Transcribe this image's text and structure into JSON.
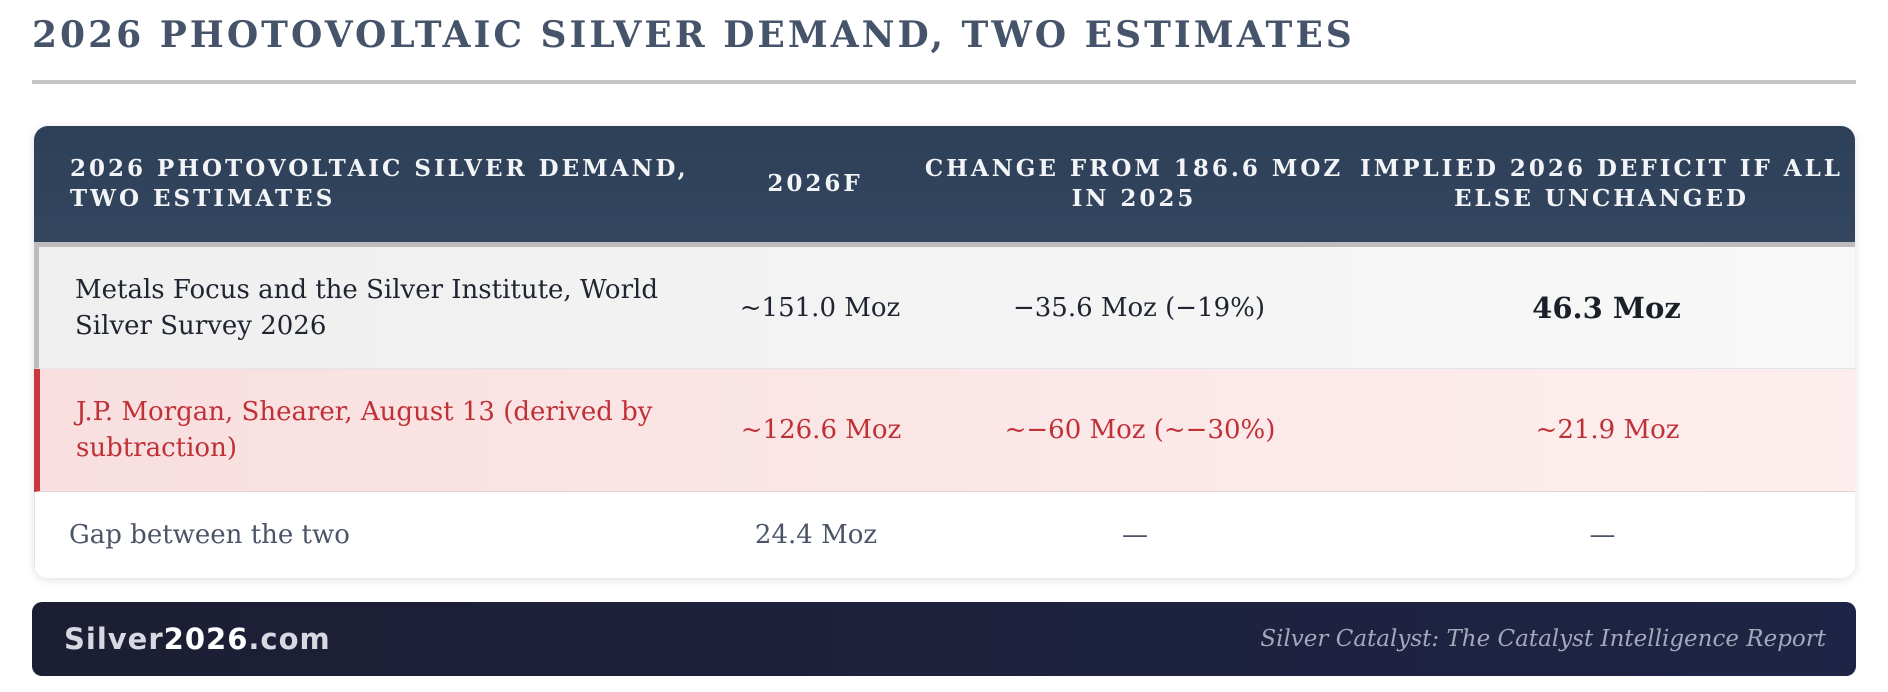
{
  "page": {
    "title": "2026 PHOTOVOLTAIC SILVER DEMAND, TWO ESTIMATES"
  },
  "table": {
    "headers": [
      "2026 PHOTOVOLTAIC SILVER DEMAND, TWO ESTIMATES",
      "2026F",
      "CHANGE FROM 186.6 MOZ IN 2025",
      "IMPLIED 2026 DEFICIT IF ALL ELSE UNCHANGED"
    ],
    "rows": [
      [
        "Metals Focus and the Silver Institute, World Silver Survey 2026",
        "~151.0 Moz",
        "−35.6 Moz (−19%)",
        "46.3 Moz"
      ],
      [
        "J.P. Morgan, Shearer, August 13 (derived by subtraction)",
        "~126.6 Moz",
        "~−60 Moz (~−30%)",
        "~21.9 Moz"
      ],
      [
        "Gap between the two",
        "24.4 Moz",
        "—",
        "—"
      ]
    ]
  },
  "footer": {
    "brand_prefix": "Silver",
    "brand_highlight": "2026",
    "brand_suffix": ".com",
    "report_name": "Silver Catalyst: The Catalyst Intelligence Report"
  },
  "colors": {
    "header_bg": "#2d4058",
    "highlight_row_accent": "#c8383d",
    "footer_bg": "#1c1e33"
  }
}
